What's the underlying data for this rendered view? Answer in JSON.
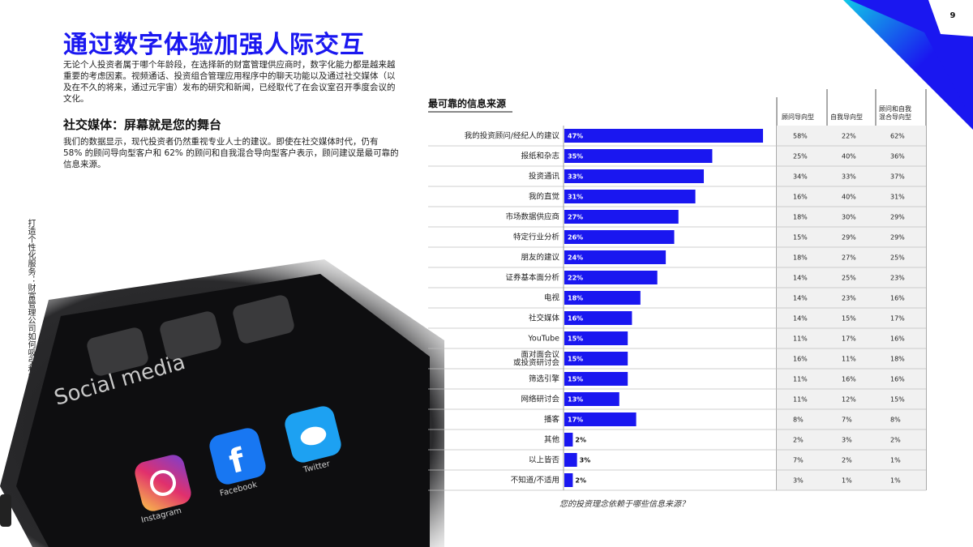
{
  "page": {
    "number": "9"
  },
  "title": "通过数字体验加强人际交互",
  "intro": "无论个人投资者属于哪个年龄段，在选择新的财富管理供应商时，数字化能力都是越来越重要的考虑因素。视频通话、投资组合管理应用程序中的聊天功能以及通过社交媒体（以及在不久的将来，通过元宇宙）发布的研究和新闻，已经取代了在会议室召开季度会议的文化。",
  "subheading": "社交媒体：屏幕就是您的舞台",
  "paragraph": "我们的数据显示，现代投资者仍然重视专业人士的建议。即使在社交媒体时代，仍有 58% 的顾问导向型客户和 62% 的顾问和自我混合导向型客户表示，顾问建议是最可靠的信息来源。",
  "sidebar": "打造个性化服务：财富管理公司如何吸引和留住现代投资者",
  "photo": {
    "app_labels": [
      "Social media",
      "Facebook",
      "Twitter",
      "Instagram"
    ],
    "colors": {
      "accent": "#1a17f0",
      "cyan": "#10c8e8"
    }
  },
  "chart_data": {
    "type": "bar",
    "title": "最可靠的信息来源",
    "footnote": "您的投资理念依赖于哪些信息来源？",
    "categories": [
      [
        "我的投资顾问/经纪人的建议"
      ],
      [
        "报纸和杂志"
      ],
      [
        "投资通讯"
      ],
      [
        "我的直觉"
      ],
      [
        "市场数据供应商"
      ],
      [
        "特定行业分析"
      ],
      [
        "朋友的建议"
      ],
      [
        "证券基本面分析"
      ],
      [
        "电视"
      ],
      [
        "社交媒体"
      ],
      [
        "YouTube"
      ],
      [
        "面对面会议",
        "或投资研讨会"
      ],
      [
        "筛选引擎"
      ],
      [
        "网络研讨会"
      ],
      [
        "播客"
      ],
      [
        "其他"
      ],
      [
        "以上皆否"
      ],
      [
        "不知道/不适用"
      ]
    ],
    "values": [
      47,
      35,
      33,
      31,
      27,
      26,
      24,
      22,
      18,
      16,
      15,
      15,
      15,
      13,
      17,
      2,
      3,
      2
    ],
    "value_labels": [
      "47%",
      "35%",
      "33%",
      "31%",
      "27%",
      "26%",
      "24%",
      "22%",
      "18%",
      "16%",
      "15%",
      "15%",
      "15%",
      "13%",
      "17%",
      "2%",
      "3%",
      "2%"
    ],
    "bar_color": "#1a17f0",
    "table": {
      "columns": [
        [
          "顾问导向型"
        ],
        [
          "自我导向型"
        ],
        [
          "顾问和自我",
          "混合导向型"
        ]
      ],
      "rows": [
        [
          "58%",
          "22%",
          "62%"
        ],
        [
          "25%",
          "40%",
          "36%"
        ],
        [
          "34%",
          "33%",
          "37%"
        ],
        [
          "16%",
          "40%",
          "31%"
        ],
        [
          "18%",
          "30%",
          "29%"
        ],
        [
          "15%",
          "29%",
          "29%"
        ],
        [
          "18%",
          "27%",
          "25%"
        ],
        [
          "14%",
          "25%",
          "23%"
        ],
        [
          "14%",
          "23%",
          "16%"
        ],
        [
          "14%",
          "15%",
          "17%"
        ],
        [
          "11%",
          "17%",
          "16%"
        ],
        [
          "16%",
          "11%",
          "18%"
        ],
        [
          "11%",
          "16%",
          "16%"
        ],
        [
          "11%",
          "12%",
          "15%"
        ],
        [
          "8%",
          "7%",
          "8%"
        ],
        [
          "2%",
          "3%",
          "2%"
        ],
        [
          "7%",
          "2%",
          "1%"
        ],
        [
          "3%",
          "1%",
          "1%"
        ]
      ]
    }
  }
}
